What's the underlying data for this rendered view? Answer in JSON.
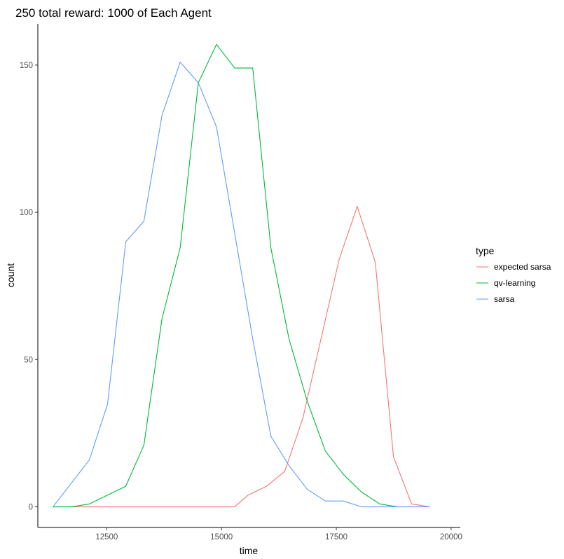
{
  "chart_data": {
    "type": "line",
    "title": "250 total reward: 1000 of Each Agent",
    "xlabel": "time",
    "ylabel": "count",
    "xlim": [
      11000,
      20200
    ],
    "ylim": [
      -7,
      164
    ],
    "x_ticks": [
      12500,
      15000,
      17500,
      20000
    ],
    "y_ticks": [
      0,
      50,
      100,
      150
    ],
    "grid": false,
    "legend": {
      "title": "type",
      "position": "right"
    },
    "series": [
      {
        "name": "expected sarsa",
        "color": "#F8766D",
        "x": [
          11330,
          11730,
          12125,
          12520,
          12915,
          13310,
          13705,
          14100,
          14495,
          14890,
          15285,
          15580,
          15980,
          16375,
          16770,
          17165,
          17560,
          17955,
          18350,
          18745,
          19140,
          19535
        ],
        "y": [
          0,
          0,
          0,
          0,
          0,
          0,
          0,
          0,
          0,
          0,
          0,
          4,
          7,
          12,
          30,
          57,
          84,
          102,
          83,
          17,
          1,
          0
        ]
      },
      {
        "name": "qv-learning",
        "color": "#00BA38",
        "x": [
          11330,
          11730,
          12125,
          12520,
          12915,
          13310,
          13705,
          14100,
          14495,
          14890,
          15285,
          15680,
          16075,
          16470,
          16865,
          17260,
          17655,
          18050,
          18445,
          18840
        ],
        "y": [
          0,
          0,
          1,
          4,
          7,
          21,
          64,
          88,
          144,
          157,
          149,
          149,
          88,
          57,
          36,
          19,
          11,
          5,
          1,
          0
        ]
      },
      {
        "name": "sarsa",
        "color": "#619CFF",
        "x": [
          11330,
          12125,
          12520,
          12915,
          13310,
          13705,
          14100,
          14495,
          14890,
          15285,
          15680,
          16075,
          16470,
          16865,
          17260,
          17655,
          18050,
          18445,
          18840,
          19535
        ],
        "y": [
          0,
          16,
          35,
          90,
          97,
          133,
          151,
          144,
          129,
          93,
          57,
          24,
          14,
          6,
          2,
          2,
          0,
          0,
          0,
          0
        ]
      }
    ]
  }
}
